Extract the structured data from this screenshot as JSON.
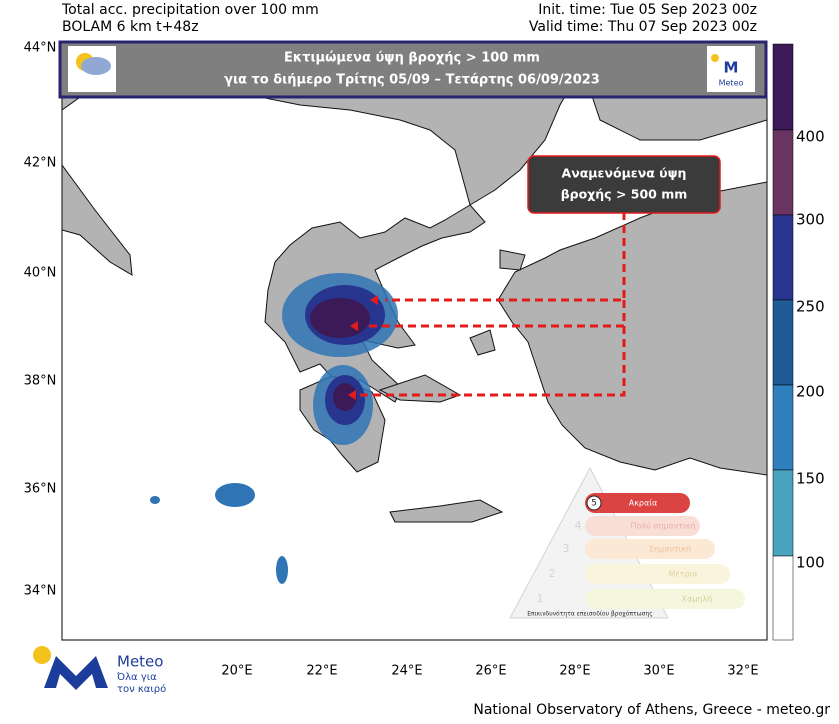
{
  "header": {
    "left": [
      "Total acc. precipitation over 100 mm",
      "BOLAM 6 km t+48z"
    ],
    "right": [
      "Init. time: Tue 05 Sep 2023 00z",
      "Valid time: Thu 07 Sep 2023 00z"
    ]
  },
  "banner": {
    "lines": [
      "Εκτιμώμενα ύψη βροχής > 100 mm",
      "για το διήμερο Τρίτης 05/09 – Τετάρτης 06/09/2023"
    ],
    "logo": "Meteo"
  },
  "callout": {
    "lines": [
      "Αναμενόμενα ύψη",
      "βροχής > 500 mm"
    ]
  },
  "axes": {
    "lat_labels": [
      "44°N",
      "42°N",
      "40°N",
      "38°N",
      "36°N",
      "34°N"
    ],
    "lon_labels": [
      "20°E",
      "22°E",
      "24°E",
      "26°E",
      "28°E",
      "30°E",
      "32°E"
    ]
  },
  "colorbar": {
    "labels": [
      100,
      150,
      200,
      250,
      300,
      400
    ]
  },
  "logo": {
    "name": "Meteo",
    "tagline": [
      "Όλα για",
      "τον καιρό"
    ]
  },
  "warning_scale": {
    "levels": [
      {
        "number": 5,
        "label": "Ακραία"
      },
      {
        "number": 4,
        "label": "Πολύ σημαντική"
      },
      {
        "number": 3,
        "label": "Σημαντική"
      },
      {
        "number": 2,
        "label": "Μέτρια"
      },
      {
        "number": 1,
        "label": "Χαμηλή"
      }
    ],
    "caption": "Επικινδυνότητα επεισοδίου βροχόπτωσης"
  },
  "footer": "National Observatory of Athens, Greece - meteo.gr"
}
